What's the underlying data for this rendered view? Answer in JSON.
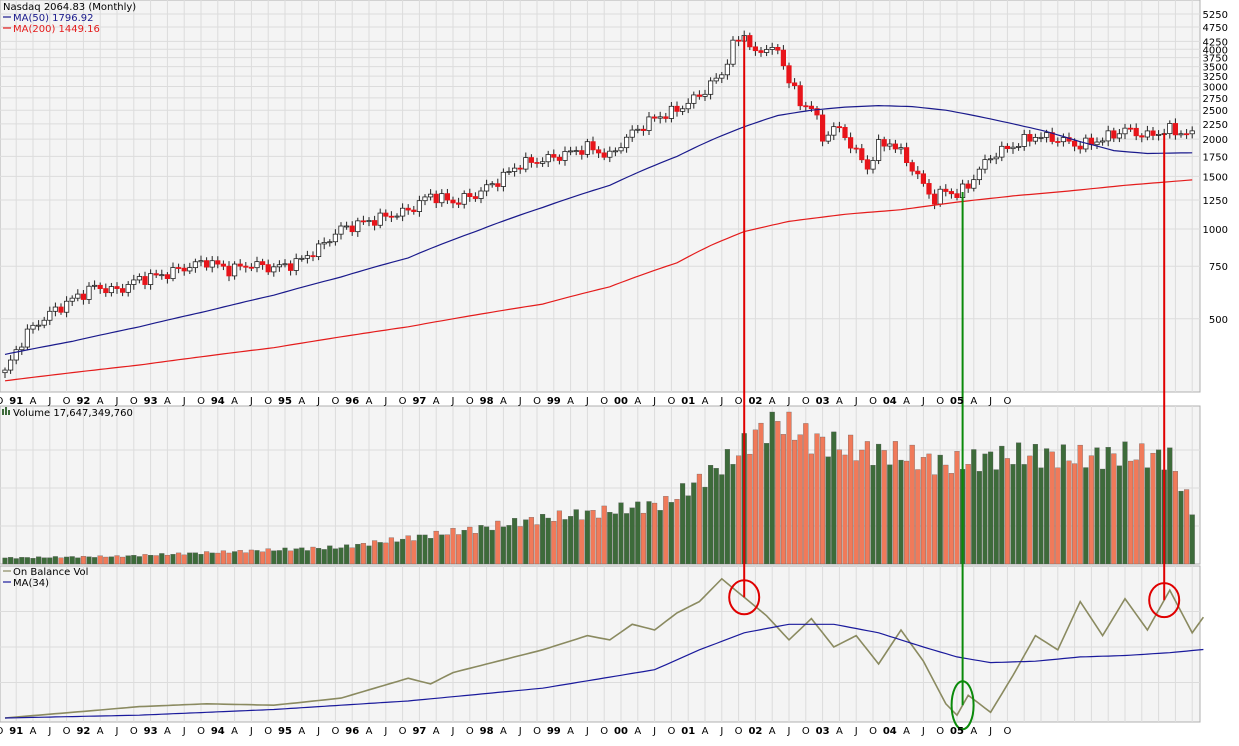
{
  "colors": {
    "panel_bg": "#f4f4f4",
    "grid": "#dcdcdc",
    "candle_up": "#ffffff",
    "candle_down": "#e8141a",
    "ma50": "#1a1a8c",
    "ma200": "#e41c1c",
    "vol_up": "#3d6b3a",
    "vol_down": "#f07a5a",
    "obv": "#8a8a60",
    "obv_ma": "#1a1a9c",
    "red_marker": "#e00000",
    "green_marker": "#0a8a0a"
  },
  "chart_data": [
    {
      "type": "candlestick",
      "title": "Nasdaq 2064.83 (Monthly)",
      "legend": [
        {
          "label": "MA(50) 1796.92",
          "color": "#1a1a8c"
        },
        {
          "label": "MA(200) 1449.16",
          "color": "#e41c1c"
        }
      ],
      "scale": "log",
      "ylim": [
        300,
        5500
      ],
      "y_ticks": [
        5250,
        4750,
        4250,
        4000,
        3750,
        3500,
        3250,
        3000,
        2750,
        2500,
        2250,
        2000,
        1750,
        1500,
        1250,
        1000,
        750,
        500
      ],
      "x_tick_labels": [
        "O",
        "91",
        "A",
        "J",
        "O",
        "92",
        "A",
        "J",
        "O",
        "93",
        "A",
        "J",
        "O",
        "94",
        "A",
        "J",
        "O",
        "95",
        "A",
        "J",
        "O",
        "96",
        "A",
        "J",
        "O",
        "97",
        "A",
        "J",
        "O",
        "98",
        "A",
        "J",
        "O",
        "99",
        "A",
        "J",
        "O",
        "00",
        "A",
        "J",
        "O",
        "01",
        "A",
        "J",
        "O",
        "02",
        "A",
        "J",
        "O",
        "03",
        "A",
        "J",
        "O",
        "04",
        "A",
        "J",
        "O",
        "05",
        "A",
        "J",
        "O"
      ],
      "close_anchors": [
        [
          0,
          330
        ],
        [
          4,
          450
        ],
        [
          8,
          520
        ],
        [
          12,
          580
        ],
        [
          16,
          640
        ],
        [
          20,
          620
        ],
        [
          24,
          680
        ],
        [
          28,
          700
        ],
        [
          32,
          740
        ],
        [
          36,
          780
        ],
        [
          40,
          730
        ],
        [
          44,
          760
        ],
        [
          48,
          740
        ],
        [
          52,
          770
        ],
        [
          56,
          860
        ],
        [
          60,
          1000
        ],
        [
          64,
          1050
        ],
        [
          68,
          1100
        ],
        [
          72,
          1150
        ],
        [
          76,
          1300
        ],
        [
          80,
          1230
        ],
        [
          84,
          1300
        ],
        [
          88,
          1450
        ],
        [
          92,
          1650
        ],
        [
          96,
          1700
        ],
        [
          100,
          1780
        ],
        [
          104,
          1880
        ],
        [
          108,
          1750
        ],
        [
          112,
          2100
        ],
        [
          116,
          2350
        ],
        [
          120,
          2500
        ],
        [
          124,
          2800
        ],
        [
          128,
          3300
        ],
        [
          130,
          4100
        ],
        [
          132,
          4500
        ],
        [
          134,
          3800
        ],
        [
          136,
          4100
        ],
        [
          138,
          3900
        ],
        [
          140,
          3200
        ],
        [
          142,
          2600
        ],
        [
          144,
          2600
        ],
        [
          146,
          2000
        ],
        [
          148,
          2200
        ],
        [
          150,
          2050
        ],
        [
          152,
          1800
        ],
        [
          154,
          1600
        ],
        [
          156,
          1900
        ],
        [
          158,
          1950
        ],
        [
          160,
          1800
        ],
        [
          162,
          1600
        ],
        [
          164,
          1400
        ],
        [
          166,
          1250
        ],
        [
          168,
          1350
        ],
        [
          170,
          1300
        ],
        [
          172,
          1400
        ],
        [
          176,
          1750
        ],
        [
          180,
          1900
        ],
        [
          184,
          2050
        ],
        [
          188,
          2000
        ],
        [
          192,
          1900
        ],
        [
          196,
          2000
        ],
        [
          200,
          2150
        ],
        [
          204,
          2050
        ],
        [
          208,
          2150
        ],
        [
          212,
          2060
        ]
      ],
      "ma50_anchors": [
        [
          0,
          380
        ],
        [
          12,
          420
        ],
        [
          24,
          470
        ],
        [
          36,
          530
        ],
        [
          48,
          600
        ],
        [
          60,
          690
        ],
        [
          72,
          800
        ],
        [
          84,
          980
        ],
        [
          96,
          1180
        ],
        [
          108,
          1400
        ],
        [
          120,
          1750
        ],
        [
          126,
          1980
        ],
        [
          132,
          2200
        ],
        [
          138,
          2400
        ],
        [
          144,
          2500
        ],
        [
          150,
          2560
        ],
        [
          156,
          2590
        ],
        [
          162,
          2570
        ],
        [
          168,
          2500
        ],
        [
          174,
          2380
        ],
        [
          180,
          2250
        ],
        [
          186,
          2120
        ],
        [
          192,
          1960
        ],
        [
          198,
          1830
        ],
        [
          204,
          1790
        ],
        [
          212,
          1800
        ]
      ],
      "ma200_anchors": [
        [
          0,
          310
        ],
        [
          24,
          350
        ],
        [
          48,
          400
        ],
        [
          72,
          470
        ],
        [
          96,
          560
        ],
        [
          108,
          640
        ],
        [
          120,
          770
        ],
        [
          126,
          880
        ],
        [
          132,
          980
        ],
        [
          140,
          1060
        ],
        [
          150,
          1120
        ],
        [
          160,
          1160
        ],
        [
          170,
          1230
        ],
        [
          180,
          1290
        ],
        [
          190,
          1340
        ],
        [
          200,
          1400
        ],
        [
          212,
          1460
        ]
      ],
      "annotations": [
        {
          "type": "vline",
          "month": 132,
          "color": "red"
        },
        {
          "type": "vline",
          "month": 171,
          "color": "green"
        },
        {
          "type": "vline",
          "month": 207,
          "color": "red"
        }
      ]
    },
    {
      "type": "bar",
      "title": "Volume 17,647,349,760",
      "values_relative_anchors": [
        [
          0,
          0.04
        ],
        [
          20,
          0.05
        ],
        [
          40,
          0.08
        ],
        [
          60,
          0.11
        ],
        [
          72,
          0.17
        ],
        [
          84,
          0.23
        ],
        [
          96,
          0.3
        ],
        [
          108,
          0.35
        ],
        [
          118,
          0.4
        ],
        [
          124,
          0.55
        ],
        [
          130,
          0.7
        ],
        [
          134,
          0.85
        ],
        [
          138,
          0.95
        ],
        [
          144,
          0.82
        ],
        [
          152,
          0.75
        ],
        [
          160,
          0.72
        ],
        [
          168,
          0.65
        ],
        [
          176,
          0.7
        ],
        [
          184,
          0.72
        ],
        [
          192,
          0.7
        ],
        [
          200,
          0.72
        ],
        [
          208,
          0.7
        ],
        [
          212,
          0.35
        ]
      ]
    },
    {
      "type": "line",
      "title": "On Balance Vol",
      "legend": [
        {
          "label": "On Balance Vol",
          "color": "#8a8a60"
        },
        {
          "label": "MA(34)",
          "color": "#1a1a9c"
        }
      ],
      "obv_anchors": [
        [
          0,
          0.0
        ],
        [
          12,
          0.04
        ],
        [
          24,
          0.08
        ],
        [
          36,
          0.1
        ],
        [
          48,
          0.09
        ],
        [
          60,
          0.14
        ],
        [
          72,
          0.28
        ],
        [
          76,
          0.24
        ],
        [
          80,
          0.32
        ],
        [
          88,
          0.4
        ],
        [
          96,
          0.48
        ],
        [
          104,
          0.58
        ],
        [
          108,
          0.55
        ],
        [
          112,
          0.66
        ],
        [
          116,
          0.62
        ],
        [
          120,
          0.74
        ],
        [
          124,
          0.82
        ],
        [
          128,
          0.98
        ],
        [
          132,
          0.85
        ],
        [
          136,
          0.72
        ],
        [
          140,
          0.55
        ],
        [
          144,
          0.7
        ],
        [
          148,
          0.5
        ],
        [
          152,
          0.58
        ],
        [
          156,
          0.38
        ],
        [
          160,
          0.62
        ],
        [
          164,
          0.4
        ],
        [
          168,
          0.1
        ],
        [
          170,
          0.02
        ],
        [
          172,
          0.16
        ],
        [
          176,
          0.04
        ],
        [
          180,
          0.3
        ],
        [
          184,
          0.58
        ],
        [
          188,
          0.48
        ],
        [
          192,
          0.82
        ],
        [
          196,
          0.58
        ],
        [
          200,
          0.84
        ],
        [
          204,
          0.62
        ],
        [
          208,
          0.9
        ],
        [
          212,
          0.6
        ],
        [
          216,
          0.82
        ],
        [
          220,
          0.58
        ],
        [
          224,
          0.7
        ],
        [
          228,
          0.55
        ]
      ],
      "obv_ma_anchors": [
        [
          0,
          0.0
        ],
        [
          24,
          0.02
        ],
        [
          48,
          0.06
        ],
        [
          72,
          0.12
        ],
        [
          96,
          0.21
        ],
        [
          116,
          0.34
        ],
        [
          124,
          0.48
        ],
        [
          132,
          0.6
        ],
        [
          140,
          0.66
        ],
        [
          148,
          0.66
        ],
        [
          156,
          0.6
        ],
        [
          164,
          0.5
        ],
        [
          170,
          0.43
        ],
        [
          176,
          0.39
        ],
        [
          184,
          0.4
        ],
        [
          192,
          0.43
        ],
        [
          200,
          0.44
        ],
        [
          208,
          0.46
        ],
        [
          216,
          0.49
        ],
        [
          228,
          0.55
        ]
      ]
    }
  ]
}
